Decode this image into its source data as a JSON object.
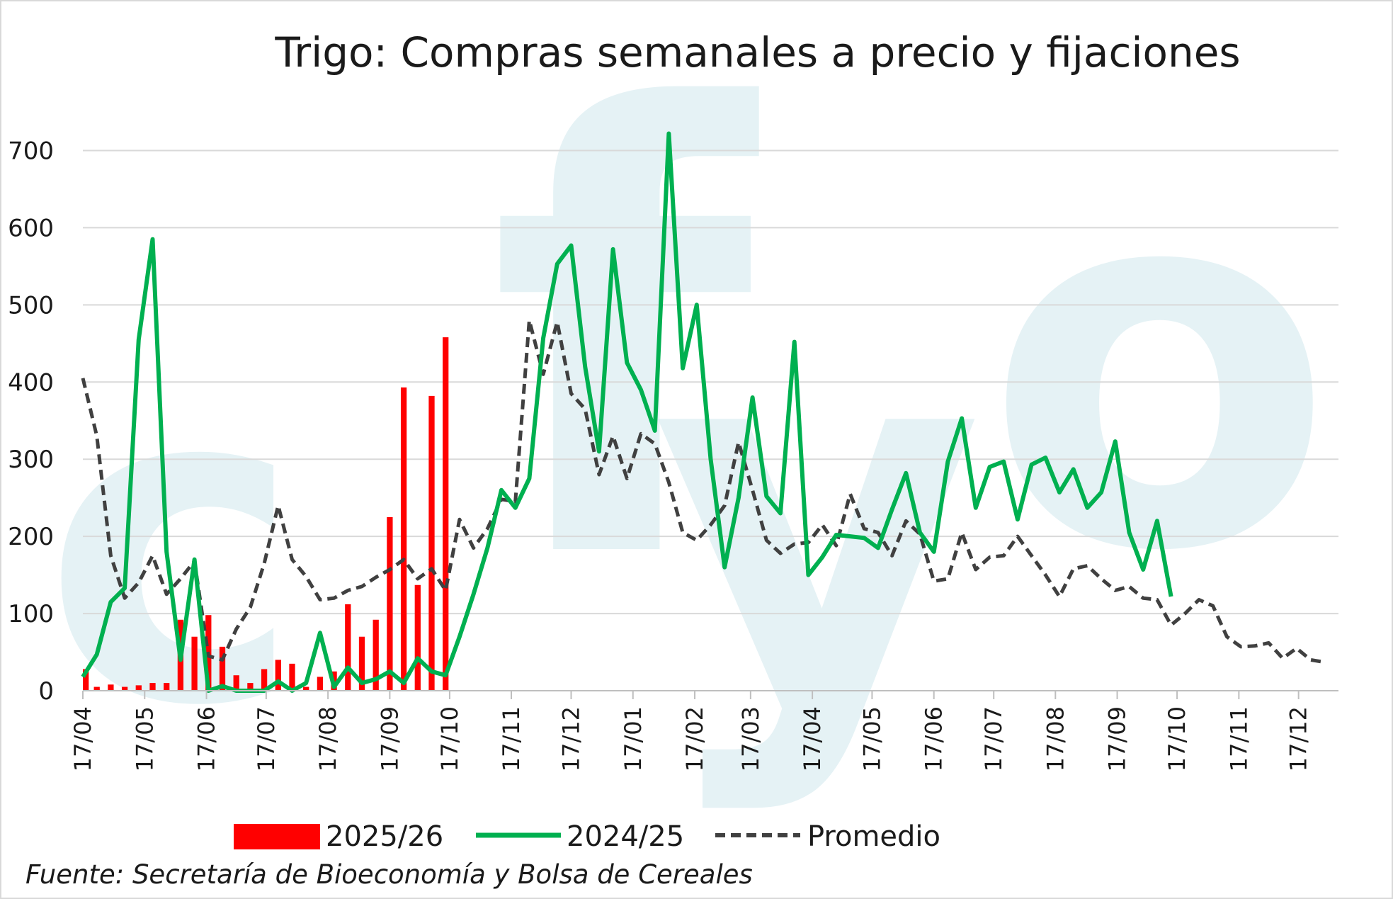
{
  "chart_data": {
    "type": "bar+line",
    "title": "Trigo: Compras semanales a precio y fijaciones",
    "source": "Fuente: Secretaría de Bioeconomía y Bolsa de Cereales",
    "watermark": "fyo",
    "ylim": [
      0,
      750
    ],
    "yticks": [
      0,
      100,
      200,
      300,
      400,
      500,
      600,
      700
    ],
    "xlim": [
      0,
      90
    ],
    "xticks": [
      {
        "pos": 0,
        "label": "17/04"
      },
      {
        "pos": 4.43,
        "label": "17/05"
      },
      {
        "pos": 8.86,
        "label": "17/06"
      },
      {
        "pos": 13.14,
        "label": "17/07"
      },
      {
        "pos": 17.57,
        "label": "17/08"
      },
      {
        "pos": 22.0,
        "label": "17/09"
      },
      {
        "pos": 26.29,
        "label": "17/10"
      },
      {
        "pos": 30.71,
        "label": "17/11"
      },
      {
        "pos": 35.0,
        "label": "17/12"
      },
      {
        "pos": 39.43,
        "label": "17/01"
      },
      {
        "pos": 43.86,
        "label": "17/02"
      },
      {
        "pos": 47.86,
        "label": "17/03"
      },
      {
        "pos": 52.29,
        "label": "17/04"
      },
      {
        "pos": 56.57,
        "label": "17/05"
      },
      {
        "pos": 61.0,
        "label": "17/06"
      },
      {
        "pos": 65.29,
        "label": "17/07"
      },
      {
        "pos": 69.71,
        "label": "17/08"
      },
      {
        "pos": 74.14,
        "label": "17/09"
      },
      {
        "pos": 78.43,
        "label": "17/10"
      },
      {
        "pos": 82.86,
        "label": "17/11"
      },
      {
        "pos": 87.14,
        "label": "17/12"
      }
    ],
    "series": [
      {
        "name": "2025/26",
        "type": "bar",
        "color": "#ff0000",
        "values": [
          28,
          5,
          8,
          5,
          7,
          10,
          10,
          92,
          70,
          98,
          57,
          20,
          10,
          28,
          40,
          35,
          5,
          18,
          25,
          112,
          70,
          92,
          225,
          393,
          137,
          382,
          458
        ]
      },
      {
        "name": "2024/25",
        "type": "line",
        "color": "#00b050",
        "values": [
          18,
          47,
          115,
          133,
          455,
          585,
          180,
          40,
          170,
          0,
          6,
          0,
          0,
          0,
          12,
          0,
          10,
          75,
          5,
          30,
          10,
          15,
          25,
          10,
          42,
          25,
          20,
          70,
          125,
          185,
          260,
          237,
          275,
          457,
          553,
          577,
          420,
          310,
          572,
          425,
          390,
          337,
          722,
          418,
          500,
          300,
          160,
          250,
          380,
          252,
          230,
          452,
          150,
          173,
          202,
          200,
          198,
          185,
          235,
          282,
          205,
          180,
          297,
          353,
          237,
          290,
          297,
          222,
          293,
          302,
          257,
          287,
          237,
          257,
          323,
          205,
          157,
          220,
          122
        ]
      },
      {
        "name": "Promedio",
        "type": "line",
        "dash": true,
        "color": "#404040",
        "values": [
          405,
          330,
          175,
          120,
          140,
          175,
          125,
          145,
          168,
          45,
          40,
          80,
          108,
          165,
          240,
          170,
          148,
          118,
          120,
          130,
          135,
          147,
          157,
          170,
          145,
          158,
          130,
          222,
          185,
          210,
          248,
          245,
          480,
          410,
          478,
          385,
          365,
          280,
          330,
          275,
          333,
          320,
          270,
          205,
          195,
          215,
          240,
          322,
          260,
          195,
          178,
          190,
          192,
          215,
          188,
          255,
          210,
          205,
          175,
          220,
          203,
          142,
          145,
          205,
          157,
          173,
          175,
          200,
          175,
          150,
          122,
          158,
          162,
          145,
          130,
          135,
          120,
          118,
          85,
          100,
          118,
          110,
          70,
          57,
          58,
          62,
          42,
          55,
          40,
          37
        ]
      }
    ],
    "legend": [
      "2025/26",
      "2024/25",
      "Promedio"
    ],
    "legend_position": "bottom"
  }
}
